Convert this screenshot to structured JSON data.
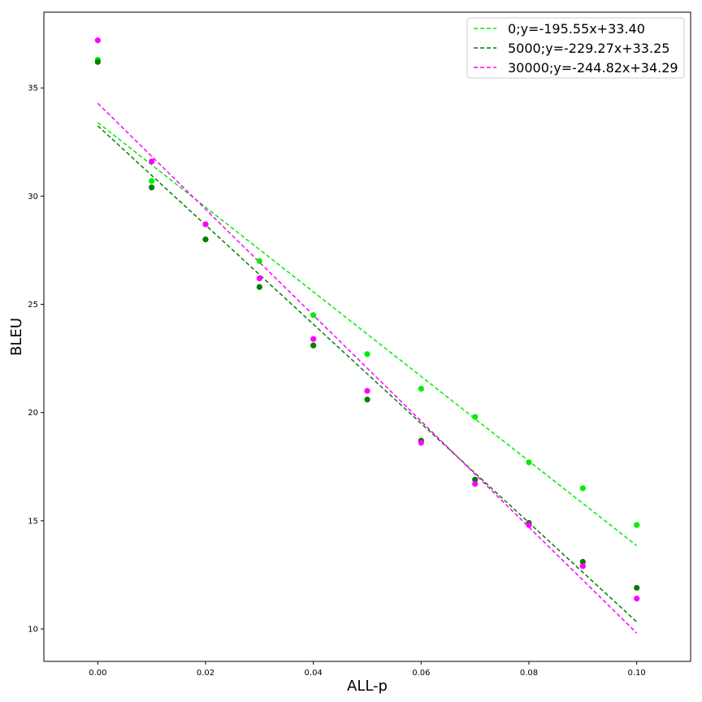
{
  "chart_data": {
    "type": "scatter",
    "title": "",
    "xlabel": "ALL-p",
    "ylabel": "BLEU",
    "xlim": [
      -0.01,
      0.11
    ],
    "ylim": [
      8.5,
      38.5
    ],
    "x_ticks": [
      0.0,
      0.02,
      0.04,
      0.06,
      0.08,
      0.1
    ],
    "x_tick_labels": [
      "0.00",
      "0.02",
      "0.04",
      "0.06",
      "0.08",
      "0.10"
    ],
    "y_ticks": [
      10,
      15,
      20,
      25,
      30,
      35
    ],
    "y_tick_labels": [
      "10",
      "15",
      "20",
      "25",
      "30",
      "35"
    ],
    "grid": false,
    "legend_position": "top-right",
    "x": [
      0.0,
      0.01,
      0.02,
      0.03,
      0.04,
      0.05,
      0.06,
      0.07,
      0.08,
      0.09,
      0.1
    ],
    "series": [
      {
        "name": "0;y=-195.55x+33.40",
        "color": "#00ee00",
        "values": [
          36.3,
          30.7,
          28.7,
          27.0,
          24.5,
          22.7,
          21.1,
          19.8,
          17.7,
          16.5,
          14.8
        ],
        "fit": {
          "slope": -195.55,
          "intercept": 33.4
        }
      },
      {
        "name": "5000;y=-229.27x+33.25",
        "color": "#007f00",
        "values": [
          36.2,
          30.4,
          28.0,
          25.8,
          23.1,
          20.6,
          18.7,
          16.9,
          14.9,
          13.1,
          11.9
        ],
        "fit": {
          "slope": -229.27,
          "intercept": 33.25
        }
      },
      {
        "name": "30000;y=-244.82x+34.29",
        "color": "#ff00ff",
        "values": [
          37.2,
          31.6,
          28.7,
          26.2,
          23.4,
          21.0,
          18.6,
          16.7,
          14.8,
          12.9,
          11.4
        ],
        "fit": {
          "slope": -244.82,
          "intercept": 34.29
        }
      }
    ]
  }
}
